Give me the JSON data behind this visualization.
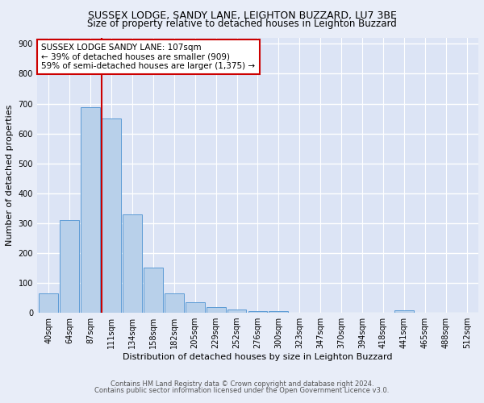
{
  "title": "SUSSEX LODGE, SANDY LANE, LEIGHTON BUZZARD, LU7 3BE",
  "subtitle": "Size of property relative to detached houses in Leighton Buzzard",
  "xlabel": "Distribution of detached houses by size in Leighton Buzzard",
  "ylabel": "Number of detached properties",
  "footer1": "Contains HM Land Registry data © Crown copyright and database right 2024.",
  "footer2": "Contains public sector information licensed under the Open Government Licence v3.0.",
  "bar_labels": [
    "40sqm",
    "64sqm",
    "87sqm",
    "111sqm",
    "134sqm",
    "158sqm",
    "182sqm",
    "205sqm",
    "229sqm",
    "252sqm",
    "276sqm",
    "300sqm",
    "323sqm",
    "347sqm",
    "370sqm",
    "394sqm",
    "418sqm",
    "441sqm",
    "465sqm",
    "488sqm",
    "512sqm"
  ],
  "bar_values": [
    65,
    310,
    688,
    650,
    330,
    152,
    65,
    35,
    20,
    12,
    5,
    7,
    0,
    0,
    0,
    0,
    0,
    8,
    0,
    0,
    0
  ],
  "bar_color": "#b8d0ea",
  "bar_edge_color": "#5b9bd5",
  "annotation_text": "SUSSEX LODGE SANDY LANE: 107sqm\n← 39% of detached houses are smaller (909)\n59% of semi-detached houses are larger (1,375) →",
  "vline_color": "#cc0000",
  "annotation_box_edge": "#cc0000",
  "ylim": [
    0,
    920
  ],
  "background_color": "#e8edf8",
  "plot_bg_color": "#dce4f5",
  "grid_color": "#ffffff",
  "title_fontsize": 9,
  "subtitle_fontsize": 8.5,
  "ylabel_fontsize": 8,
  "xlabel_fontsize": 8,
  "tick_fontsize": 7,
  "footer_fontsize": 6,
  "annotation_fontsize": 7.5
}
